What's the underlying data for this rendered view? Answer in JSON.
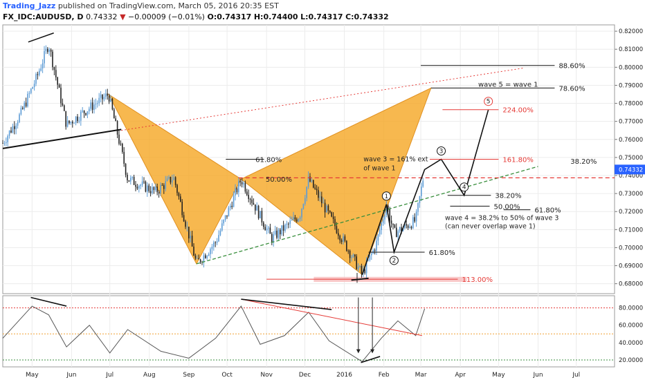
{
  "header": {
    "author": "Trading_Jazz",
    "published": "published on TradingView.com, March 05, 2016 20:35 EST",
    "symbol": "FX_IDC:AUDUSD, D",
    "last": "0.74332",
    "change": "−0.00009 (−0.01%)",
    "open": "O:0.74317",
    "high": "H:0.74400",
    "low": "L:0.74317",
    "close": "C:0.74332"
  },
  "colors": {
    "pattern_fill": "#f5a623",
    "up_candle": "#5b9bd5",
    "down_candle": "#222222",
    "fib_red": "#e53935",
    "trend_green": "#388e3c",
    "rsi_line": "#555555",
    "highlight": "#f8c0c0"
  },
  "chart_data": [
    {
      "type": "line",
      "title": "",
      "x_ticks": [
        "May",
        "Jun",
        "Jul",
        "Aug",
        "Sep",
        "Oct",
        "Nov",
        "Dec",
        "2016",
        "Feb",
        "Mar",
        "Apr",
        "May",
        "Jun",
        "Jul"
      ],
      "y_ticks": [
        "0.82000",
        "0.81000",
        "0.80000",
        "0.79000",
        "0.78000",
        "0.77000",
        "0.76000",
        "0.75000",
        "0.74000",
        "0.73000",
        "0.72000",
        "0.71000",
        "0.70000",
        "0.69000",
        "0.68000"
      ],
      "ylim": [
        0.6745,
        0.8235
      ],
      "last_price": "0.74332",
      "price_path": [
        {
          "x": "2015-04-08",
          "y": 0.758
        },
        {
          "x": "2015-04-22",
          "y": 0.774
        },
        {
          "x": "2015-05-05",
          "y": 0.795
        },
        {
          "x": "2015-05-14",
          "y": 0.813
        },
        {
          "x": "2015-05-28",
          "y": 0.768
        },
        {
          "x": "2015-06-12",
          "y": 0.776
        },
        {
          "x": "2015-06-30",
          "y": 0.785
        },
        {
          "x": "2015-07-15",
          "y": 0.738
        },
        {
          "x": "2015-08-06",
          "y": 0.731
        },
        {
          "x": "2015-08-20",
          "y": 0.739
        },
        {
          "x": "2015-09-07",
          "y": 0.691
        },
        {
          "x": "2015-09-22",
          "y": 0.703
        },
        {
          "x": "2015-10-12",
          "y": 0.738
        },
        {
          "x": "2015-11-05",
          "y": 0.705
        },
        {
          "x": "2015-11-27",
          "y": 0.718
        },
        {
          "x": "2015-12-04",
          "y": 0.738
        },
        {
          "x": "2015-12-20",
          "y": 0.718
        },
        {
          "x": "2016-01-15",
          "y": 0.685
        },
        {
          "x": "2016-01-26",
          "y": 0.702
        },
        {
          "x": "2016-02-03",
          "y": 0.724
        },
        {
          "x": "2016-02-09",
          "y": 0.708
        },
        {
          "x": "2016-02-26",
          "y": 0.715
        },
        {
          "x": "2016-03-04",
          "y": 0.7433
        }
      ],
      "fib_levels": [
        {
          "label": "88.60%",
          "value": 0.801
        },
        {
          "label": "78.60%",
          "value": 0.7885
        },
        {
          "label": "224.00%",
          "value": 0.7765
        },
        {
          "label": "161.80%",
          "value": 0.749
        },
        {
          "label": "38.20%",
          "value": 0.729
        },
        {
          "label": "50.00%",
          "value": 0.723
        },
        {
          "label": "61.80%",
          "value": 0.721
        },
        {
          "label": "61.80%",
          "value": 0.6975
        },
        {
          "label": "113.00%",
          "value": 0.6825
        }
      ],
      "pattern_labels": [
        "61.80%",
        "50.00%",
        "38.20%"
      ],
      "waves": [
        "1",
        "2",
        "3",
        "4",
        "5"
      ],
      "annotations": {
        "wave5": "wave 5 = wave 1",
        "wave3_a": "wave 3 = 161% ext",
        "wave3_b": "of wave 1",
        "wave4_a": "wave 4 = 38.2% to 50% of wave 3",
        "wave4_b": "(can never overlap wave 1)"
      }
    },
    {
      "type": "line",
      "title": "",
      "y_ticks": [
        "80.0000",
        "60.0000",
        "40.0000",
        "20.0000"
      ],
      "ylim": [
        12,
        94
      ],
      "levels": [
        80,
        50,
        20
      ],
      "rsi": [
        {
          "x": "2015-04-08",
          "y": 45
        },
        {
          "x": "2015-05-01",
          "y": 82
        },
        {
          "x": "2015-05-14",
          "y": 72
        },
        {
          "x": "2015-05-28",
          "y": 35
        },
        {
          "x": "2015-06-15",
          "y": 60
        },
        {
          "x": "2015-07-01",
          "y": 28
        },
        {
          "x": "2015-07-15",
          "y": 55
        },
        {
          "x": "2015-08-10",
          "y": 30
        },
        {
          "x": "2015-09-01",
          "y": 22
        },
        {
          "x": "2015-09-22",
          "y": 45
        },
        {
          "x": "2015-10-12",
          "y": 82
        },
        {
          "x": "2015-10-27",
          "y": 38
        },
        {
          "x": "2015-11-15",
          "y": 48
        },
        {
          "x": "2015-12-04",
          "y": 75
        },
        {
          "x": "2015-12-20",
          "y": 42
        },
        {
          "x": "2016-01-15",
          "y": 18
        },
        {
          "x": "2016-01-30",
          "y": 45
        },
        {
          "x": "2016-02-12",
          "y": 65
        },
        {
          "x": "2016-02-26",
          "y": 48
        },
        {
          "x": "2016-03-04",
          "y": 79
        }
      ]
    }
  ]
}
